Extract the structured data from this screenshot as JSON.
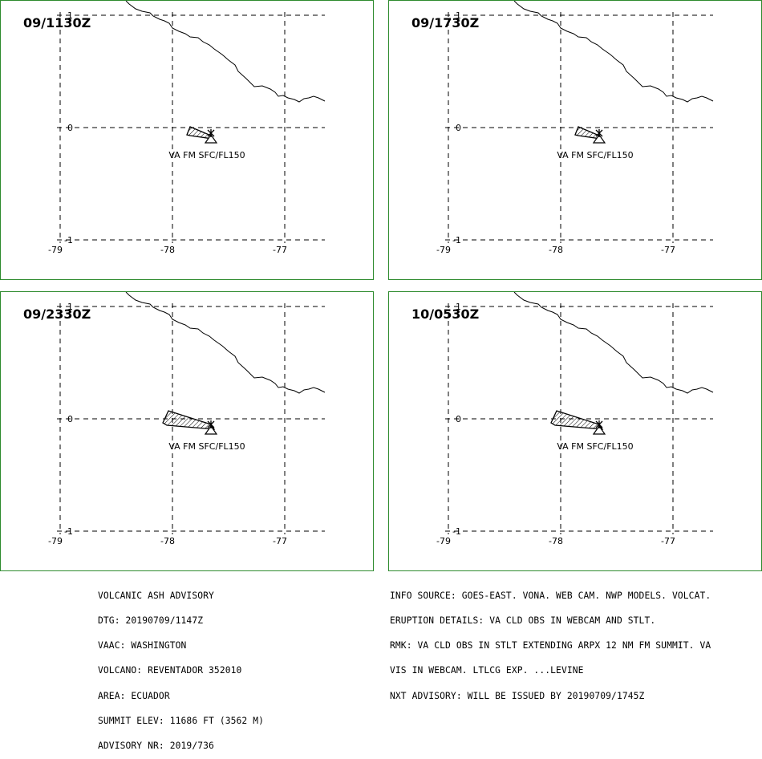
{
  "panels": [
    {
      "time": "09/1130Z",
      "ash_label": "VA FM SFC/FL150",
      "plume": "small"
    },
    {
      "time": "09/1730Z",
      "ash_label": "VA FM SFC/FL150",
      "plume": "small"
    },
    {
      "time": "09/2330Z",
      "ash_label": "VA FM SFC/FL150",
      "plume": "large"
    },
    {
      "time": "10/0530Z",
      "ash_label": "VA FM SFC/FL150",
      "plume": "large"
    }
  ],
  "axes": {
    "lon_ticks": [
      "-79",
      "-78",
      "-77"
    ],
    "lat_ticks": [
      "1",
      "0",
      "-1"
    ]
  },
  "advisory_left": [
    "VOLCANIC ASH ADVISORY",
    "DTG: 20190709/1147Z",
    "VAAC: WASHINGTON",
    "VOLCANO: REVENTADOR 352010",
    "AREA: ECUADOR",
    "SUMMIT ELEV: 11686 FT (3562 M)",
    "ADVISORY NR: 2019/736"
  ],
  "advisory_right": [
    "INFO SOURCE: GOES-EAST. VONA. WEB CAM. NWP MODELS. VOLCAT.",
    "ERUPTION DETAILS: VA CLD OBS IN WEBCAM AND STLT.",
    "RMK: VA CLD OBS IN STLT EXTENDING ARPX 12 NM FM SUMMIT. VA",
    "VIS IN WEBCAM. LTLCG EXP. ...LEVINE",
    "NXT ADVISORY: WILL BE ISSUED BY 20190709/1745Z"
  ],
  "colors": {
    "panel_border": "#2e8b2e",
    "line": "#000000"
  }
}
